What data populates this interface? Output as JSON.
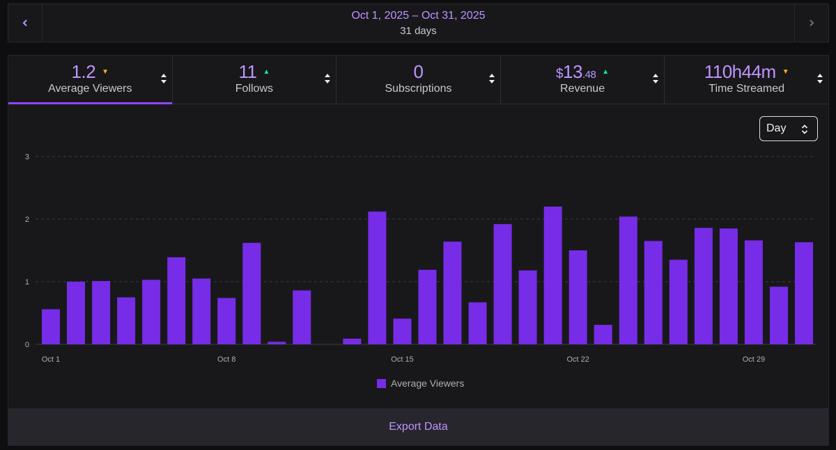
{
  "date_range": {
    "range": "Oct 1, 2025 – Oct 31, 2025",
    "days": "31 days",
    "prev_icon": "chevron-left-icon",
    "next_icon": "chevron-right-icon"
  },
  "stats": [
    {
      "key": "avg",
      "value": "1.2",
      "label": "Average Viewers",
      "trend": "down",
      "active": true
    },
    {
      "key": "follows",
      "value": "11",
      "label": "Follows",
      "trend": "up"
    },
    {
      "key": "subs",
      "value": "0",
      "label": "Subscriptions",
      "trend": "none"
    },
    {
      "key": "revenue",
      "currency": "$",
      "value": "13",
      "cents": ".48",
      "label": "Revenue",
      "trend": "up"
    },
    {
      "key": "time",
      "value": "110h44m",
      "label": "Time Streamed",
      "trend": "down"
    }
  ],
  "granularity": {
    "selected": "Day"
  },
  "colors": {
    "accent": "#bf94ff",
    "bar": "#772ce8",
    "trend_up": "#00f593",
    "trend_down": "#ffb31a"
  },
  "chart_data": {
    "type": "bar",
    "title": "",
    "xlabel": "",
    "ylabel": "",
    "ylim": [
      0,
      3
    ],
    "yticks": [
      0,
      1,
      2,
      3
    ],
    "categories": [
      "Oct 1",
      "Oct 2",
      "Oct 3",
      "Oct 4",
      "Oct 5",
      "Oct 6",
      "Oct 7",
      "Oct 8",
      "Oct 9",
      "Oct 10",
      "Oct 11",
      "Oct 12",
      "Oct 13",
      "Oct 14",
      "Oct 15",
      "Oct 16",
      "Oct 17",
      "Oct 18",
      "Oct 19",
      "Oct 20",
      "Oct 21",
      "Oct 22",
      "Oct 23",
      "Oct 24",
      "Oct 25",
      "Oct 26",
      "Oct 27",
      "Oct 28",
      "Oct 29",
      "Oct 30",
      "Oct 31"
    ],
    "xtick_labels": [
      "Oct 1",
      "Oct 8",
      "Oct 15",
      "Oct 22",
      "Oct 29"
    ],
    "series": [
      {
        "name": "Average Viewers",
        "values": [
          0.56,
          1.0,
          1.01,
          0.75,
          1.03,
          1.39,
          1.05,
          0.74,
          1.62,
          0.04,
          0.86,
          0,
          0.09,
          2.12,
          0.41,
          1.19,
          1.64,
          0.67,
          1.92,
          1.18,
          2.2,
          1.5,
          0.31,
          2.04,
          1.65,
          1.35,
          1.86,
          1.85,
          1.66,
          0.92,
          1.63
        ]
      }
    ]
  },
  "export": {
    "label": "Export Data"
  }
}
